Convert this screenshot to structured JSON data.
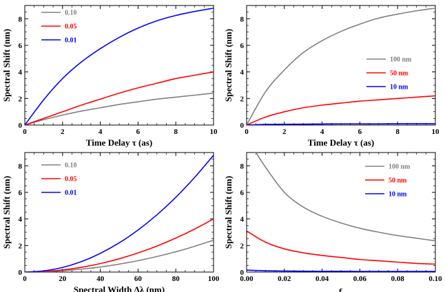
{
  "chart_data": [
    {
      "type": "line",
      "xlabel": "Time Delay τ (as)",
      "ylabel": "Spectral Shift (nm)",
      "xlim": [
        0,
        10
      ],
      "ylim": [
        0,
        9
      ],
      "xticks": [
        "0",
        "2",
        "4",
        "6",
        "8",
        "10"
      ],
      "yticks": [
        "0",
        "2",
        "4",
        "6",
        "8"
      ],
      "legend_position": "top-left",
      "series": [
        {
          "name": "0.10",
          "color": "#808080",
          "x": [
            0,
            1,
            2,
            3,
            4,
            5,
            6,
            7,
            8,
            9,
            10
          ],
          "y": [
            0,
            0.4,
            0.75,
            1.05,
            1.3,
            1.55,
            1.75,
            1.95,
            2.1,
            2.25,
            2.4
          ]
        },
        {
          "name": "0.05",
          "color": "#ff0000",
          "x": [
            0,
            1,
            2,
            3,
            4,
            5,
            6,
            7,
            8,
            9,
            10
          ],
          "y": [
            0,
            0.5,
            1.0,
            1.5,
            1.95,
            2.4,
            2.8,
            3.15,
            3.5,
            3.75,
            4.0
          ]
        },
        {
          "name": "0.01",
          "color": "#0000ff",
          "x": [
            0,
            1,
            2,
            3,
            4,
            5,
            6,
            7,
            8,
            9,
            10
          ],
          "y": [
            0,
            1.9,
            3.5,
            4.75,
            5.75,
            6.6,
            7.3,
            7.85,
            8.25,
            8.55,
            8.8
          ]
        }
      ]
    },
    {
      "type": "line",
      "xlabel": "Time Delay τ (as)",
      "ylabel": "Spectral Shift (nm)",
      "xlim": [
        0,
        10
      ],
      "ylim": [
        0,
        9
      ],
      "xticks": [
        "0",
        "2",
        "4",
        "6",
        "8",
        "10"
      ],
      "yticks": [
        "0",
        "2",
        "4",
        "6",
        "8"
      ],
      "legend_position": "center-right",
      "series": [
        {
          "name": "100 nm",
          "color": "#808080",
          "x": [
            0,
            1,
            2,
            3,
            4,
            5,
            6,
            7,
            8,
            9,
            10
          ],
          "y": [
            0,
            2.5,
            4.15,
            5.45,
            6.35,
            7.05,
            7.6,
            8.05,
            8.35,
            8.6,
            8.8
          ]
        },
        {
          "name": "50 nm",
          "color": "#ff0000",
          "x": [
            0,
            1,
            2,
            3,
            4,
            5,
            6,
            7,
            8,
            9,
            10
          ],
          "y": [
            0,
            0.6,
            1.0,
            1.3,
            1.5,
            1.65,
            1.8,
            1.9,
            2.0,
            2.1,
            2.2
          ]
        },
        {
          "name": "10 nm",
          "color": "#0000ff",
          "x": [
            0,
            1,
            2,
            3,
            4,
            5,
            6,
            7,
            8,
            9,
            10
          ],
          "y": [
            0,
            0.05,
            0.06,
            0.07,
            0.08,
            0.09,
            0.09,
            0.09,
            0.1,
            0.1,
            0.1
          ]
        }
      ]
    },
    {
      "type": "line",
      "xlabel": "Spectral Width Δλ (nm)",
      "ylabel": "Spectral Shift (nm)",
      "xlim": [
        0,
        100
      ],
      "ylim": [
        0,
        9
      ],
      "xticks": [
        "0",
        "20",
        "40",
        "60",
        "80",
        "100"
      ],
      "yticks": [
        "0",
        "2",
        "4",
        "6",
        "8"
      ],
      "legend_position": "top-left",
      "series": [
        {
          "name": "0.10",
          "color": "#808080",
          "x": [
            0,
            10,
            20,
            30,
            40,
            50,
            60,
            70,
            80,
            90,
            100
          ],
          "y": [
            0,
            0.02,
            0.1,
            0.22,
            0.38,
            0.6,
            0.86,
            1.17,
            1.53,
            1.94,
            2.4
          ]
        },
        {
          "name": "0.05",
          "color": "#ff0000",
          "x": [
            0,
            10,
            20,
            30,
            40,
            50,
            60,
            70,
            80,
            90,
            100
          ],
          "y": [
            0,
            0.04,
            0.16,
            0.36,
            0.64,
            1.0,
            1.44,
            1.96,
            2.56,
            3.24,
            4.0
          ]
        },
        {
          "name": "0.01",
          "color": "#0000ff",
          "x": [
            0,
            10,
            20,
            30,
            40,
            50,
            60,
            70,
            80,
            90,
            100
          ],
          "y": [
            0,
            0.09,
            0.35,
            0.79,
            1.41,
            2.2,
            3.17,
            4.31,
            5.63,
            7.13,
            8.8
          ]
        }
      ]
    },
    {
      "type": "line",
      "xlabel": "ϵ",
      "ylabel": "Spectral Shift (nm)",
      "xlim": [
        0,
        0.1
      ],
      "ylim": [
        0,
        9
      ],
      "xticks": [
        "0.00",
        "0.02",
        "0.04",
        "0.06",
        "0.08",
        "0.10"
      ],
      "yticks": [
        "0",
        "2",
        "4",
        "6",
        "8"
      ],
      "legend_position": "top-right",
      "series": [
        {
          "name": "100 nm",
          "color": "#808080",
          "x": [
            0.005,
            0.01,
            0.02,
            0.03,
            0.04,
            0.05,
            0.06,
            0.07,
            0.08,
            0.09,
            0.1
          ],
          "y": [
            9,
            7.9,
            6.0,
            4.9,
            4.2,
            3.7,
            3.3,
            3.0,
            2.75,
            2.55,
            2.35
          ]
        },
        {
          "name": "50 nm",
          "color": "#ff0000",
          "x": [
            0,
            0.01,
            0.02,
            0.03,
            0.04,
            0.05,
            0.06,
            0.07,
            0.08,
            0.09,
            0.1
          ],
          "y": [
            3.1,
            2.25,
            1.75,
            1.45,
            1.25,
            1.1,
            0.95,
            0.85,
            0.75,
            0.65,
            0.6
          ]
        },
        {
          "name": "10 nm",
          "color": "#0000ff",
          "x": [
            0,
            0.01,
            0.02,
            0.03,
            0.04,
            0.05,
            0.06,
            0.07,
            0.08,
            0.09,
            0.1
          ],
          "y": [
            0.15,
            0.1,
            0.08,
            0.07,
            0.06,
            0.06,
            0.05,
            0.05,
            0.05,
            0.05,
            0.05
          ]
        }
      ]
    }
  ]
}
